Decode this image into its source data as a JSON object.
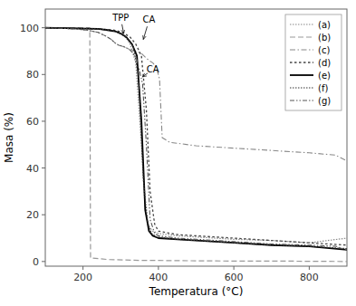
{
  "chart_data": {
    "type": "line",
    "title": "",
    "xlabel": "Temperatura (°C)",
    "ylabel": "Masa (%)",
    "xlim": [
      100,
      900
    ],
    "ylim": [
      -2,
      108
    ],
    "xticks": [
      200,
      400,
      600,
      800
    ],
    "yticks": [
      0,
      20,
      40,
      60,
      80,
      100
    ],
    "grid": false,
    "legend": "upper right",
    "series": [
      {
        "name": "(a)",
        "color": "#888888",
        "line_style": "densely_dotted",
        "x": [
          100,
          240,
          260,
          280,
          295,
          305,
          315,
          325,
          340,
          355,
          365,
          375,
          385,
          400,
          450,
          500,
          600,
          700,
          800,
          900
        ],
        "values": [
          100,
          99.5,
          99.2,
          98.8,
          98,
          97,
          95.5,
          93,
          85,
          50,
          22,
          15,
          13,
          12,
          11,
          10.5,
          9.5,
          9,
          8,
          10
        ]
      },
      {
        "name": "(b)",
        "color": "#999999",
        "line_style": "dashed",
        "x": [
          100,
          218,
          219,
          220,
          270,
          350,
          500,
          600,
          700,
          800,
          900
        ],
        "values": [
          100,
          100,
          50,
          1.5,
          0.8,
          0.5,
          0.3,
          0.2,
          0.2,
          0.1,
          0.0
        ]
      },
      {
        "name": "(c)",
        "color": "#888888",
        "line_style": "dashdot",
        "x": [
          100,
          180,
          210,
          240,
          260,
          275,
          285,
          295,
          305,
          320,
          340,
          355,
          368,
          375,
          385,
          395,
          403,
          410,
          430,
          500,
          600,
          700,
          800,
          870,
          900
        ],
        "values": [
          100,
          99.5,
          99,
          98,
          96.5,
          95,
          93.5,
          92.5,
          92,
          91,
          90,
          89,
          87,
          86,
          85,
          83,
          78,
          53,
          51,
          49.5,
          48.5,
          47.5,
          46.5,
          45.5,
          43
        ]
      },
      {
        "name": "(d)",
        "color": "#444444",
        "line_style": "loosely_dotted",
        "x": [
          100,
          240,
          260,
          280,
          295,
          310,
          325,
          340,
          355,
          368,
          378,
          390,
          400,
          450,
          500,
          600,
          700,
          800,
          900
        ],
        "values": [
          100,
          99.5,
          99.3,
          99,
          98.5,
          97.5,
          96,
          93,
          88,
          65,
          30,
          16,
          13,
          11.5,
          11,
          10,
          9,
          8,
          7
        ]
      },
      {
        "name": "(e)",
        "color": "#000000",
        "line_style": "solid",
        "x": [
          100,
          240,
          265,
          285,
          300,
          315,
          330,
          343,
          355,
          365,
          375,
          385,
          400,
          450,
          500,
          600,
          700,
          800,
          900
        ],
        "values": [
          100,
          99.5,
          99,
          98.5,
          97.5,
          96,
          93,
          88,
          60,
          22,
          13,
          11,
          10,
          9.5,
          9,
          8,
          7,
          6.5,
          5
        ]
      },
      {
        "name": "(f)",
        "color": "#333333",
        "line_style": "densely_dotted",
        "x": [
          100,
          240,
          265,
          285,
          300,
          315,
          333,
          347,
          360,
          372,
          382,
          395,
          450,
          500,
          600,
          700,
          800,
          900
        ],
        "values": [
          100,
          99.5,
          99,
          98.5,
          97.5,
          96,
          92,
          80,
          35,
          16,
          12,
          10.5,
          9.5,
          9,
          8,
          7,
          6.5,
          5.5
        ]
      },
      {
        "name": "(g)",
        "color": "#555555",
        "line_style": "dashdot2",
        "x": [
          100,
          180,
          210,
          240,
          260,
          275,
          285,
          295,
          308,
          325,
          342,
          358,
          368,
          378,
          390,
          400,
          450,
          500,
          600,
          700,
          800,
          870,
          900
        ],
        "values": [
          100,
          99.5,
          99,
          98,
          96.5,
          95,
          93.5,
          92.5,
          92,
          90.5,
          87,
          76,
          50,
          18,
          12,
          11,
          10,
          9.5,
          8.5,
          7.5,
          7,
          6.5,
          5
        ]
      }
    ],
    "annotations": [
      {
        "text": "TPP",
        "x": 308,
        "y": 97.5,
        "text_x": 300,
        "text_y": 103
      },
      {
        "text": "CA",
        "x": 360,
        "y": 95,
        "text_x": 375,
        "text_y": 102
      },
      {
        "text": "CA",
        "x": 358,
        "y": 79,
        "text_x": 385,
        "text_y": 81
      }
    ]
  }
}
